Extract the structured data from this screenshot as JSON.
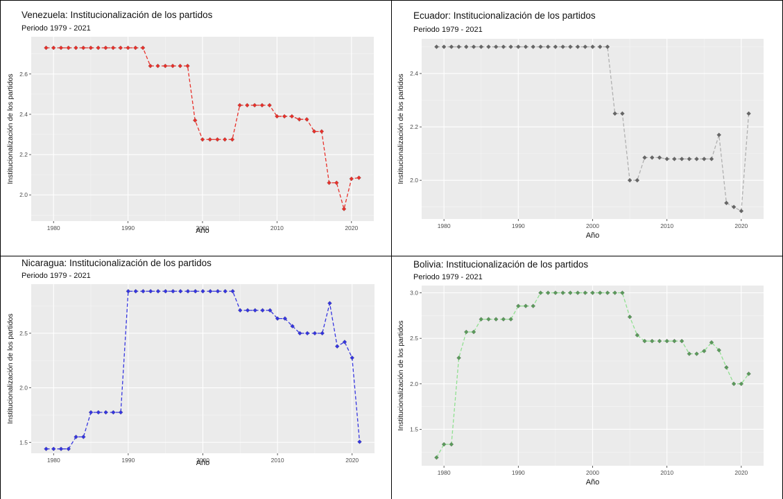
{
  "chart_data": [
    {
      "type": "line",
      "title": "Venezuela: Institucionalización de los partidos",
      "subtitle": "Periodo 1979 - 2021",
      "xlabel": "Año",
      "ylabel": "Institucionalización de los partidos",
      "xlim": [
        1977,
        2023
      ],
      "ylim": [
        1.87,
        2.785
      ],
      "xticks": [
        1980,
        1990,
        2000,
        2010,
        2020
      ],
      "xtick_labels": [
        "1980",
        "1990",
        "2000",
        "2010",
        "2020"
      ],
      "yticks": [
        2.0,
        2.2,
        2.4,
        2.6
      ],
      "ytick_labels": [
        "2.0",
        "2.2",
        "2.4",
        "2.6"
      ],
      "color": "#e8302a",
      "grid": true,
      "x": [
        1979,
        1980,
        1981,
        1982,
        1983,
        1984,
        1985,
        1986,
        1987,
        1988,
        1989,
        1990,
        1991,
        1992,
        1993,
        1994,
        1995,
        1996,
        1997,
        1998,
        1999,
        2000,
        2001,
        2002,
        2003,
        2004,
        2005,
        2006,
        2007,
        2008,
        2009,
        2010,
        2011,
        2012,
        2013,
        2014,
        2015,
        2016,
        2017,
        2018,
        2019,
        2020,
        2021
      ],
      "y": [
        2.73,
        2.73,
        2.73,
        2.73,
        2.73,
        2.73,
        2.73,
        2.73,
        2.73,
        2.73,
        2.73,
        2.73,
        2.73,
        2.73,
        2.64,
        2.64,
        2.64,
        2.64,
        2.64,
        2.64,
        2.37,
        2.275,
        2.275,
        2.275,
        2.275,
        2.275,
        2.445,
        2.445,
        2.445,
        2.445,
        2.445,
        2.39,
        2.39,
        2.39,
        2.375,
        2.375,
        2.315,
        2.315,
        2.06,
        2.06,
        1.93,
        2.08,
        2.085
      ]
    },
    {
      "type": "line",
      "title": "Ecuador: Institucionalización de los partidos",
      "subtitle": "Periodo 1979 - 2021",
      "xlabel": "Año",
      "ylabel": "Institucionalización de los partidos",
      "xlim": [
        1977,
        2023
      ],
      "ylim": [
        1.855,
        2.53
      ],
      "xticks": [
        1980,
        1990,
        2000,
        2010,
        2020
      ],
      "xtick_labels": [
        "1980",
        "1990",
        "2000",
        "2010",
        "2020"
      ],
      "yticks": [
        2.0,
        2.2,
        2.4
      ],
      "ytick_labels": [
        "2.0",
        "2.2",
        "2.4"
      ],
      "color": "#b0b0b0",
      "grid": true,
      "x": [
        1979,
        1980,
        1981,
        1982,
        1983,
        1984,
        1985,
        1986,
        1987,
        1988,
        1989,
        1990,
        1991,
        1992,
        1993,
        1994,
        1995,
        1996,
        1997,
        1998,
        1999,
        2000,
        2001,
        2002,
        2003,
        2004,
        2005,
        2006,
        2007,
        2008,
        2009,
        2010,
        2011,
        2012,
        2013,
        2014,
        2015,
        2016,
        2017,
        2018,
        2019,
        2020,
        2021
      ],
      "y": [
        2.5,
        2.5,
        2.5,
        2.5,
        2.5,
        2.5,
        2.5,
        2.5,
        2.5,
        2.5,
        2.5,
        2.5,
        2.5,
        2.5,
        2.5,
        2.5,
        2.5,
        2.5,
        2.5,
        2.5,
        2.5,
        2.5,
        2.5,
        2.5,
        2.25,
        2.25,
        2.0,
        2.0,
        2.085,
        2.085,
        2.085,
        2.08,
        2.08,
        2.08,
        2.08,
        2.08,
        2.08,
        2.08,
        2.17,
        1.915,
        1.9,
        1.885,
        2.25
      ]
    },
    {
      "type": "line",
      "title": "Nicaragua: Institucionalización de los partidos",
      "subtitle": "Periodo 1979 - 2021",
      "xlabel": "Año",
      "ylabel": "Institucionalización de los partidos",
      "xlim": [
        1977,
        2023
      ],
      "ylim": [
        1.4,
        2.95
      ],
      "xticks": [
        1980,
        1990,
        2000,
        2010,
        2020
      ],
      "xtick_labels": [
        "1980",
        "1990",
        "2000",
        "2010",
        "2020"
      ],
      "yticks": [
        1.5,
        2.0,
        2.5
      ],
      "ytick_labels": [
        "1.5",
        "2.0",
        "2.5"
      ],
      "color": "#3535e0",
      "grid": true,
      "x": [
        1979,
        1980,
        1981,
        1982,
        1983,
        1984,
        1985,
        1986,
        1987,
        1988,
        1989,
        1990,
        1991,
        1992,
        1993,
        1994,
        1995,
        1996,
        1997,
        1998,
        1999,
        2000,
        2001,
        2002,
        2003,
        2004,
        2005,
        2006,
        2007,
        2008,
        2009,
        2010,
        2011,
        2012,
        2013,
        2014,
        2015,
        2016,
        2017,
        2018,
        2019,
        2020,
        2021
      ],
      "y": [
        1.44,
        1.44,
        1.44,
        1.44,
        1.55,
        1.55,
        1.775,
        1.775,
        1.775,
        1.775,
        1.775,
        2.885,
        2.885,
        2.885,
        2.885,
        2.885,
        2.885,
        2.885,
        2.885,
        2.885,
        2.885,
        2.885,
        2.885,
        2.885,
        2.885,
        2.885,
        2.71,
        2.71,
        2.71,
        2.71,
        2.71,
        2.635,
        2.635,
        2.565,
        2.5,
        2.5,
        2.5,
        2.5,
        2.775,
        2.38,
        2.42,
        2.275,
        1.505
      ]
    },
    {
      "type": "line",
      "title": "Bolivia: Institucionalización de los partidos",
      "subtitle": "Periodo 1979 - 2021",
      "xlabel": "Año",
      "ylabel": "Institucionalización de los partidos",
      "xlim": [
        1977,
        2023
      ],
      "ylim": [
        1.1,
        3.08
      ],
      "xticks": [
        1980,
        1990,
        2000,
        2010,
        2020
      ],
      "xtick_labels": [
        "1980",
        "1990",
        "2000",
        "2010",
        "2020"
      ],
      "yticks": [
        1.5,
        2.0,
        2.5,
        3.0
      ],
      "ytick_labels": [
        "1.5",
        "2.0",
        "2.5",
        "3.0"
      ],
      "color": "#90e090",
      "grid": true,
      "x": [
        1979,
        1980,
        1981,
        1982,
        1983,
        1984,
        1985,
        1986,
        1987,
        1988,
        1989,
        1990,
        1991,
        1992,
        1993,
        1994,
        1995,
        1996,
        1997,
        1998,
        1999,
        2000,
        2001,
        2002,
        2003,
        2004,
        2005,
        2006,
        2007,
        2008,
        2009,
        2010,
        2011,
        2012,
        2013,
        2014,
        2015,
        2016,
        2017,
        2018,
        2019,
        2020,
        2021
      ],
      "y": [
        1.19,
        1.335,
        1.335,
        2.285,
        2.57,
        2.57,
        2.71,
        2.71,
        2.71,
        2.71,
        2.71,
        2.855,
        2.855,
        2.855,
        3.0,
        3.0,
        3.0,
        3.0,
        3.0,
        3.0,
        3.0,
        3.0,
        3.0,
        3.0,
        3.0,
        3.0,
        2.735,
        2.535,
        2.47,
        2.47,
        2.47,
        2.47,
        2.47,
        2.47,
        2.33,
        2.33,
        2.36,
        2.455,
        2.37,
        2.18,
        2.0,
        2.0,
        2.11
      ]
    }
  ]
}
